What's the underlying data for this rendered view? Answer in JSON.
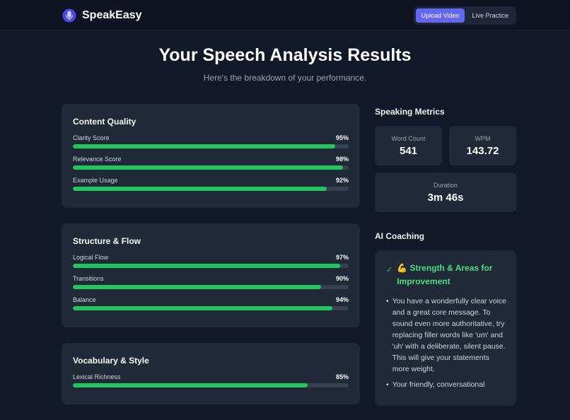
{
  "header": {
    "brand": "SpeakEasy",
    "nav": [
      {
        "label": "Upload Video",
        "active": true
      },
      {
        "label": "Live Practice",
        "active": false
      }
    ]
  },
  "page": {
    "title": "Your Speech Analysis Results",
    "subtitle": "Here's the breakdown of your performance."
  },
  "categories": [
    {
      "title": "Content Quality",
      "metrics": [
        {
          "label": "Clarity Score",
          "value": "95%",
          "fraction": 0.95
        },
        {
          "label": "Relevance Score",
          "value": "98%",
          "fraction": 0.98
        },
        {
          "label": "Example Usage",
          "value": "92%",
          "fraction": 0.92
        }
      ]
    },
    {
      "title": "Structure & Flow",
      "metrics": [
        {
          "label": "Logical Flow",
          "value": "97%",
          "fraction": 0.97
        },
        {
          "label": "Transitions",
          "value": "90%",
          "fraction": 0.9
        },
        {
          "label": "Balance",
          "value": "94%",
          "fraction": 0.94
        }
      ]
    },
    {
      "title": "Vocabulary & Style",
      "metrics": [
        {
          "label": "Lexical Richness",
          "value": "85%",
          "fraction": 0.85
        }
      ]
    }
  ],
  "speaking_metrics": {
    "title": "Speaking Metrics",
    "word_count": {
      "label": "Word Count",
      "value": "541"
    },
    "wpm": {
      "label": "WPM",
      "value": "143.72"
    },
    "duration": {
      "label": "Duration",
      "value": "3m 46s"
    }
  },
  "coaching": {
    "title": "AI Coaching",
    "heading": "💪 Strength & Areas for Improvement",
    "items": [
      "You have a wonderfully clear voice and a great core message. To sound even more authoritative, try replacing filler words like 'um' and 'uh' with a deliberate, silent pause. This will give your statements more weight.",
      "Your friendly, conversational"
    ]
  },
  "colors": {
    "accent": "#6366f1",
    "progress": "#22c55e",
    "coach_heading": "#4ade80",
    "background": "#111827",
    "card": "#1f2937"
  }
}
